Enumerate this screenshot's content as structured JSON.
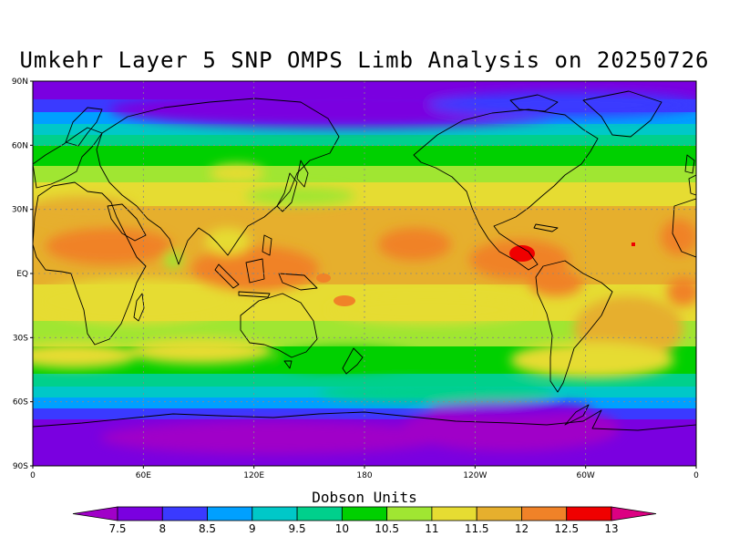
{
  "title": "Umkehr Layer 5 SNP OMPS Limb Analysis on 20250726",
  "lat_ticks": [
    "90N",
    "60N",
    "30N",
    "EQ",
    "30S",
    "60S",
    "90S"
  ],
  "lon_ticks": [
    "0",
    "60E",
    "120E",
    "180",
    "120W",
    "60W",
    "0"
  ],
  "colorbar": {
    "title": "Dobson Units",
    "levels": [
      "7.5",
      "8",
      "8.5",
      "9",
      "9.5",
      "10",
      "10.5",
      "11",
      "11.5",
      "12",
      "12.5",
      "13"
    ],
    "colors": [
      "#a000c8",
      "#7a00e0",
      "#3a3aff",
      "#00a0ff",
      "#00c8c8",
      "#00d08c",
      "#00d000",
      "#a0e632",
      "#e6dc32",
      "#e6af2d",
      "#f08228",
      "#f00000",
      "#dc0082"
    ]
  }
}
